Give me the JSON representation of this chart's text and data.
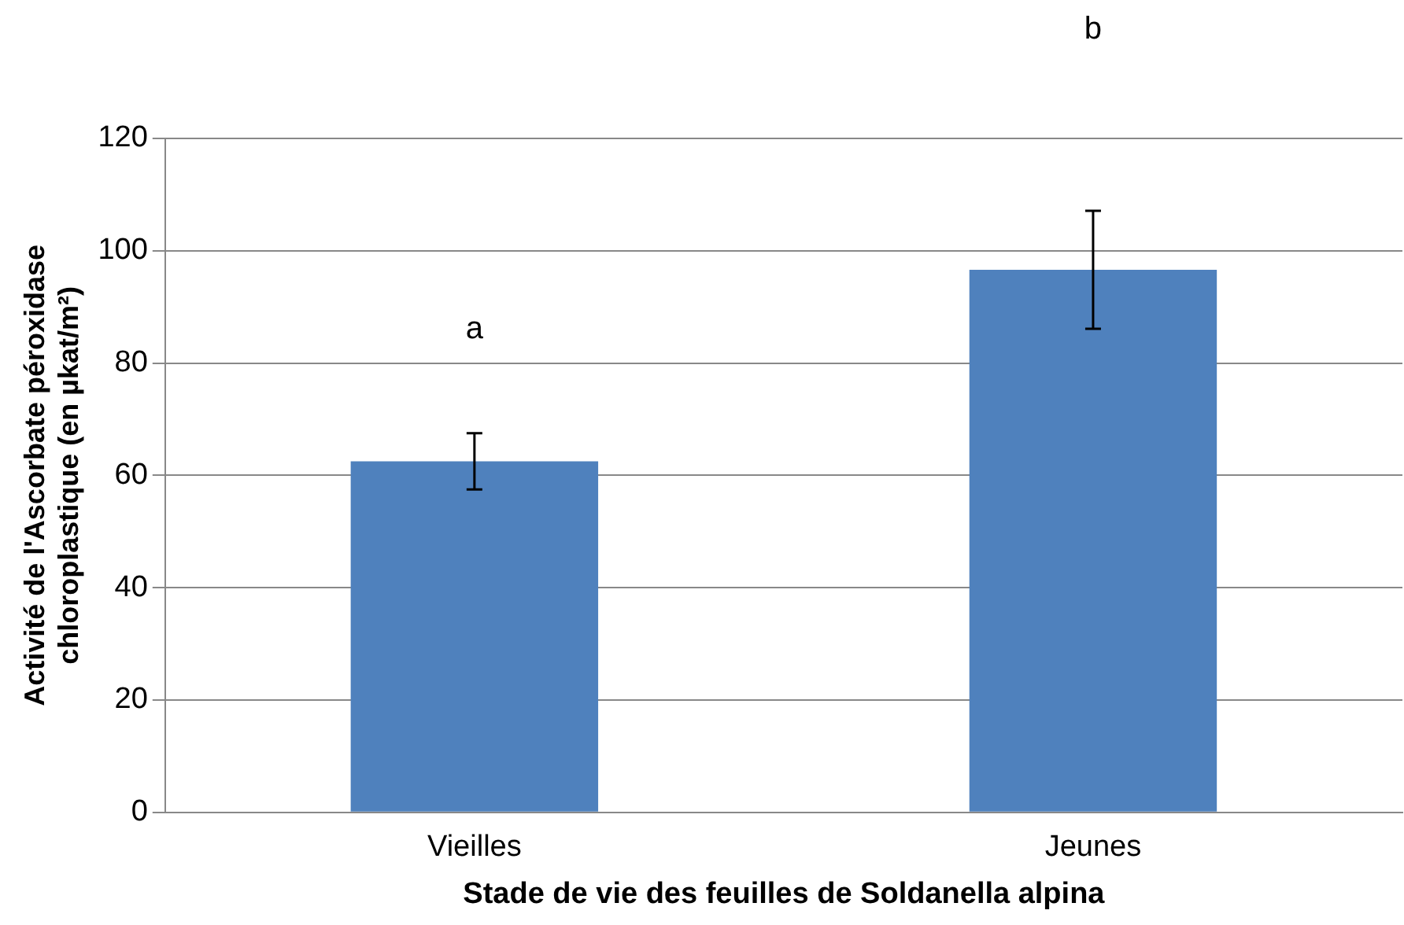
{
  "chart_data": {
    "type": "bar",
    "xlabel": "Stade de vie des feuilles de Soldanella alpina",
    "ylabel": "Activité de l'Ascorbate péroxidase\nchloroplastique (en µkat/m²)",
    "categories": [
      "Vieilles",
      "Jeunes"
    ],
    "values": [
      62.5,
      96.6
    ],
    "errors": [
      5,
      10.5
    ],
    "color": "#4f81bd",
    "ylim": [
      0,
      120
    ],
    "yticks": [
      0,
      20,
      40,
      60,
      80,
      100,
      120
    ],
    "grid": "y",
    "legend": false,
    "annotations": [
      "a",
      "b"
    ]
  }
}
